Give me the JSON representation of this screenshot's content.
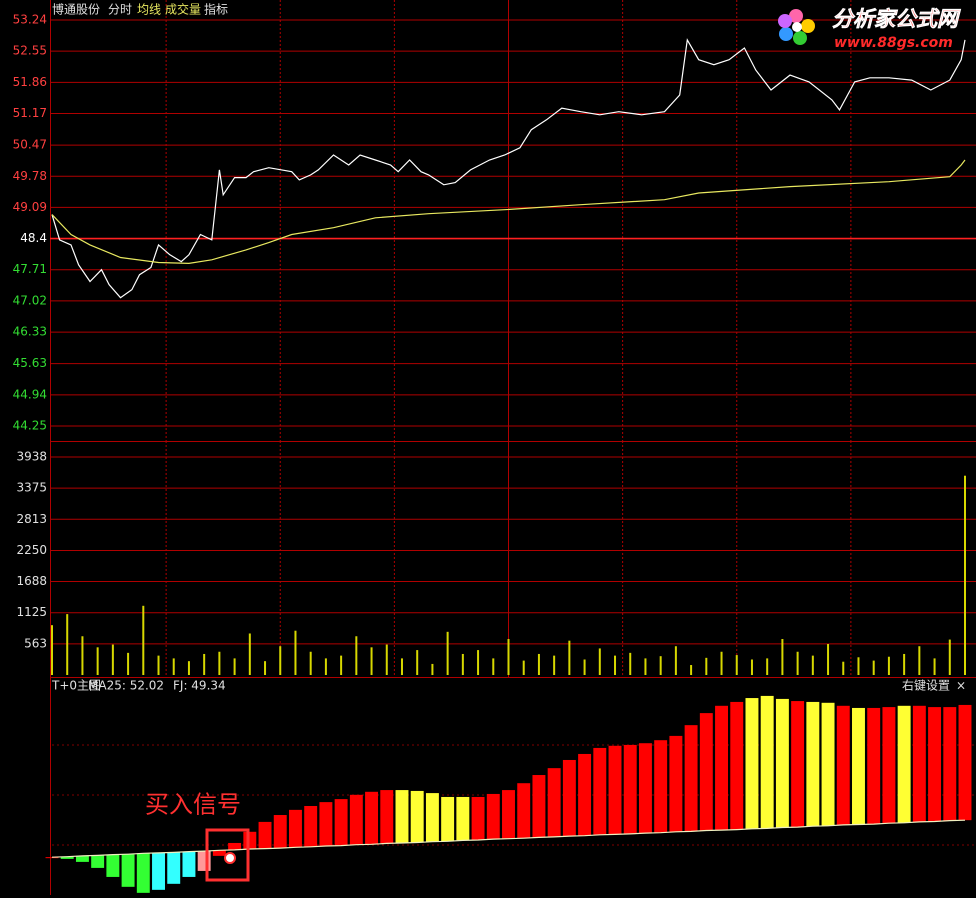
{
  "chart_data": [
    {
      "type": "line",
      "title": "博通股份",
      "menu": "指标",
      "xlim": [
        0,
        240
      ],
      "ylim": [
        44.25,
        53.24
      ],
      "reference": 48.4,
      "yticks": [
        53.24,
        52.55,
        51.86,
        51.17,
        50.47,
        49.78,
        49.09,
        48.4,
        47.71,
        47.02,
        46.33,
        45.63,
        44.94,
        44.25
      ],
      "x": [
        0,
        2,
        5,
        7,
        10,
        13,
        15,
        18,
        21,
        23,
        26,
        28,
        31,
        34,
        36,
        39,
        42,
        44,
        45,
        48,
        51,
        53,
        57,
        63,
        65,
        68,
        70,
        74,
        78,
        81,
        85,
        89,
        91,
        94,
        97,
        99,
        103,
        106,
        110,
        115,
        119,
        123,
        126,
        130,
        134,
        139,
        144,
        149,
        155,
        161,
        165,
        167,
        170,
        174,
        178,
        182,
        185,
        189,
        194,
        199,
        205,
        207,
        211,
        215,
        220,
        226,
        231,
        236,
        239,
        240
      ],
      "series": [
        {
          "name": "分时",
          "color": "#ffffff",
          "values": [
            48.93,
            48.37,
            48.26,
            47.82,
            47.45,
            47.71,
            47.38,
            47.09,
            47.27,
            47.6,
            47.76,
            48.26,
            48.04,
            47.89,
            48.04,
            48.49,
            48.37,
            49.92,
            49.37,
            49.75,
            49.75,
            49.88,
            49.97,
            49.88,
            49.7,
            49.81,
            49.92,
            50.25,
            50.03,
            50.25,
            50.14,
            50.03,
            49.88,
            50.14,
            49.88,
            49.81,
            49.59,
            49.64,
            49.92,
            50.14,
            50.25,
            50.41,
            50.81,
            51.03,
            51.29,
            51.21,
            51.14,
            51.21,
            51.14,
            51.21,
            51.58,
            52.8,
            52.36,
            52.25,
            52.36,
            52.62,
            52.13,
            51.69,
            52.02,
            51.87,
            51.47,
            51.25,
            51.87,
            51.96,
            51.96,
            51.91,
            51.69,
            51.91,
            52.36,
            52.8
          ]
        },
        {
          "name": "均线",
          "color": "#e8e860",
          "x": [
            0,
            5,
            10,
            18,
            28,
            36,
            42,
            51,
            57,
            63,
            74,
            85,
            99,
            119,
            139,
            161,
            170,
            194,
            220,
            236,
            239,
            240
          ],
          "values": [
            48.93,
            48.49,
            48.26,
            47.98,
            47.87,
            47.85,
            47.93,
            48.15,
            48.31,
            48.49,
            48.64,
            48.86,
            48.95,
            49.04,
            49.15,
            49.26,
            49.41,
            49.55,
            49.66,
            49.77,
            50.03,
            50.14
          ]
        }
      ]
    },
    {
      "type": "bar",
      "title": "成交量",
      "color": "#d8d800",
      "xlim": [
        0,
        240
      ],
      "ylim": [
        0,
        3938
      ],
      "yticks": [
        3938,
        3375,
        2813,
        2250,
        1688,
        1125,
        563
      ],
      "x": [
        0,
        4,
        8,
        12,
        16,
        20,
        24,
        28,
        32,
        36,
        40,
        44,
        48,
        52,
        56,
        60,
        64,
        68,
        72,
        76,
        80,
        84,
        88,
        92,
        96,
        100,
        104,
        108,
        112,
        116,
        120,
        124,
        128,
        132,
        136,
        140,
        144,
        148,
        152,
        156,
        160,
        164,
        168,
        172,
        176,
        180,
        184,
        188,
        192,
        196,
        200,
        204,
        208,
        212,
        216,
        220,
        224,
        228,
        232,
        236,
        240
      ],
      "values": [
        900,
        1100,
        700,
        500,
        550,
        400,
        1250,
        350,
        300,
        250,
        380,
        420,
        300,
        750,
        250,
        520,
        800,
        420,
        300,
        350,
        700,
        500,
        550,
        300,
        450,
        200,
        780,
        380,
        450,
        300,
        650,
        260,
        380,
        350,
        620,
        280,
        480,
        350,
        400,
        300,
        340,
        520,
        180,
        310,
        420,
        360,
        280,
        300,
        650,
        420,
        350,
        560,
        240,
        320,
        260,
        330,
        380,
        520,
        300,
        640,
        3600
      ]
    },
    {
      "type": "range_bar",
      "title": "T+0主图",
      "legend_labels": [
        "MA25: 52.02",
        "FJ: 49.34"
      ],
      "settings": "右键设置",
      "close": "×",
      "annotation": "买入信号",
      "xlim": [
        0,
        240
      ],
      "ylim": [
        47.6,
        52.6
      ],
      "x": [
        0,
        4,
        8,
        12,
        16,
        20,
        24,
        28,
        32,
        36,
        40,
        44,
        48,
        52,
        56,
        60,
        64,
        68,
        72,
        76,
        80,
        84,
        88,
        92,
        96,
        100,
        104,
        108,
        112,
        116,
        120,
        124,
        128,
        132,
        136,
        140,
        144,
        148,
        152,
        156,
        160,
        164,
        168,
        172,
        176,
        180,
        184,
        188,
        192,
        196,
        200,
        204,
        208,
        212,
        216,
        220,
        224,
        228,
        232,
        236,
        240
      ],
      "colors": [
        "#ff0000",
        "#33ff33",
        "#33ff33",
        "#33ff33",
        "#33ff33",
        "#33ff33",
        "#33ff33",
        "#33ffff",
        "#33ffff",
        "#33ffff",
        "#ff9999",
        "#ff0000",
        "#ff0000",
        "#ff0000",
        "#ff0000",
        "#ff0000",
        "#ff0000",
        "#ff0000",
        "#ff0000",
        "#ff0000",
        "#ff0000",
        "#ff0000",
        "#ff0000",
        "#ffff33",
        "#ffff33",
        "#ffff33",
        "#ffff33",
        "#ffff33",
        "#ff0000",
        "#ff0000",
        "#ff0000",
        "#ff0000",
        "#ff0000",
        "#ff0000",
        "#ff0000",
        "#ff0000",
        "#ff0000",
        "#ff0000",
        "#ff0000",
        "#ff0000",
        "#ff0000",
        "#ff0000",
        "#ff0000",
        "#ff0000",
        "#ff0000",
        "#ff0000",
        "#ffff33",
        "#ffff33",
        "#ffff33",
        "#ff0000",
        "#ffff33",
        "#ffff33",
        "#ff0000",
        "#ffff33",
        "#ff0000",
        "#ff0000",
        "#ffff33",
        "#ff0000",
        "#ff0000",
        "#ff0000",
        "#ff0000"
      ],
      "series": [
        {
          "name": "MA25",
          "values": [
            48.48,
            48.44,
            48.37,
            48.23,
            48.02,
            47.79,
            47.65,
            47.72,
            47.86,
            48.02,
            48.16,
            48.51,
            48.81,
            49.07,
            49.3,
            49.46,
            49.58,
            49.67,
            49.76,
            49.83,
            49.93,
            50.0,
            50.04,
            50.04,
            50.02,
            49.97,
            49.88,
            49.88,
            49.88,
            49.95,
            50.04,
            50.2,
            50.39,
            50.55,
            50.74,
            50.88,
            51.02,
            51.07,
            51.09,
            51.13,
            51.2,
            51.3,
            51.55,
            51.83,
            52.0,
            52.09,
            52.18,
            52.23,
            52.16,
            52.11,
            52.09,
            52.07,
            52.0,
            51.95,
            51.95,
            51.97,
            52.0,
            52.0,
            51.97,
            51.97,
            52.02
          ]
        },
        {
          "name": "FJ",
          "color": "#f0f0c0",
          "values": [
            48.48,
            48.49,
            48.51,
            48.52,
            48.54,
            48.55,
            48.57,
            48.58,
            48.59,
            48.61,
            48.62,
            48.64,
            48.65,
            48.67,
            48.68,
            48.69,
            48.71,
            48.72,
            48.74,
            48.75,
            48.77,
            48.78,
            48.8,
            48.81,
            48.82,
            48.84,
            48.85,
            48.87,
            48.88,
            48.9,
            48.91,
            48.92,
            48.94,
            48.95,
            48.97,
            48.98,
            49.0,
            49.01,
            49.02,
            49.04,
            49.05,
            49.07,
            49.08,
            49.1,
            49.11,
            49.12,
            49.14,
            49.15,
            49.17,
            49.18,
            49.2,
            49.21,
            49.23,
            49.24,
            49.25,
            49.27,
            49.28,
            49.3,
            49.31,
            49.33,
            49.34
          ]
        }
      ]
    }
  ],
  "watermark": {
    "site_name": "分析家公式网",
    "url": "www.88gs.com"
  }
}
